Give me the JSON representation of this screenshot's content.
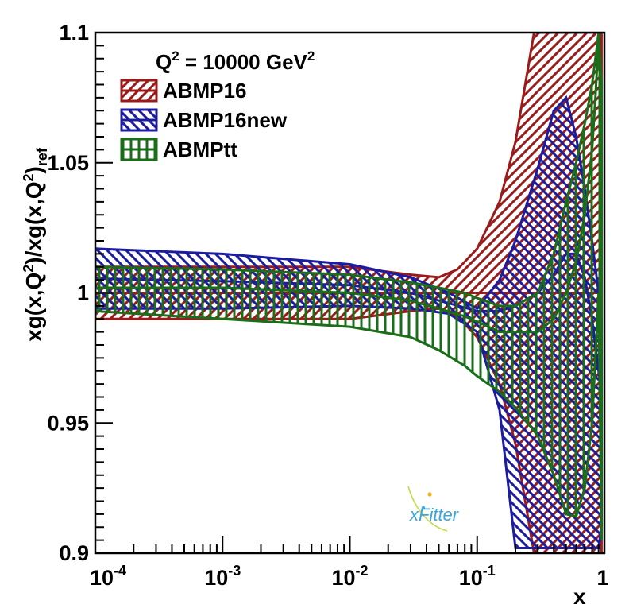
{
  "chart_data": {
    "type": "area",
    "title": "",
    "annotation": {
      "prefix": "Q",
      "sup1": "2",
      "middle": " = 10000 GeV",
      "sup2": "2"
    },
    "xlabel": "x",
    "ylabel": {
      "p1": "xg(x,Q",
      "s1": "2",
      "p2": ")/xg(x,Q",
      "s2": "2",
      "p3": ")",
      "sub": "ref"
    },
    "x_scale": "log",
    "xlim": [
      0.0001,
      1
    ],
    "ylim": [
      0.9,
      1.1
    ],
    "x_ticks": [
      {
        "value": 0.0001,
        "base": "10",
        "exp": "-4"
      },
      {
        "value": 0.001,
        "base": "10",
        "exp": "-3"
      },
      {
        "value": 0.01,
        "base": "10",
        "exp": "-2"
      },
      {
        "value": 0.1,
        "base": "10",
        "exp": "-1"
      },
      {
        "value": 1,
        "base": "1",
        "exp": ""
      }
    ],
    "y_ticks": [
      {
        "value": 0.9,
        "label": "0.9"
      },
      {
        "value": 0.95,
        "label": "0.95"
      },
      {
        "value": 1.0,
        "label": "1"
      },
      {
        "value": 1.05,
        "label": "1.05"
      },
      {
        "value": 1.1,
        "label": "1.1"
      }
    ],
    "grid": false,
    "legend_position": "top-left",
    "logo": "xFitter",
    "series": [
      {
        "name": "ABMP16",
        "color": "#9b1a1a",
        "hatch": "diagonal-up",
        "x": [
          0.0001,
          0.001,
          0.01,
          0.03,
          0.05,
          0.07,
          0.1,
          0.15,
          0.2,
          0.28,
          0.35,
          0.5,
          0.7,
          0.85,
          0.9,
          0.95
        ],
        "central": [
          1.0,
          1.0,
          1.0,
          1.0,
          1.0,
          1.0,
          1.0,
          1.0,
          1.0,
          1.0,
          1.0,
          1.0,
          1.0,
          1.0,
          1.0,
          1.0
        ],
        "upper": [
          1.01,
          1.01,
          1.01,
          1.007,
          1.006,
          1.009,
          1.017,
          1.035,
          1.058,
          1.1,
          1.1,
          1.1,
          1.1,
          1.1,
          1.1,
          1.1
        ],
        "lower": [
          0.99,
          0.99,
          0.99,
          0.993,
          0.994,
          0.991,
          0.983,
          0.965,
          0.942,
          0.9,
          0.9,
          0.9,
          0.9,
          0.9,
          0.9,
          0.9
        ]
      },
      {
        "name": "ABMP16new",
        "color": "#1c1ca0",
        "hatch": "diagonal-down",
        "x": [
          0.0001,
          0.001,
          0.01,
          0.03,
          0.06,
          0.1,
          0.15,
          0.2,
          0.3,
          0.4,
          0.5,
          0.6,
          0.7,
          0.8,
          0.9,
          0.95
        ],
        "central": [
          1.0055,
          1.0045,
          1.003,
          1.0,
          0.996,
          0.993,
          0.993,
          0.995,
          1.0,
          1.007,
          1.015,
          1.015,
          1.006,
          0.99,
          0.97,
          0.96
        ],
        "upper": [
          1.017,
          1.015,
          1.011,
          1.006,
          1.0,
          0.994,
          1.005,
          1.02,
          1.048,
          1.07,
          1.075,
          1.06,
          1.04,
          1.02,
          1.0,
          0.99
        ],
        "lower": [
          0.994,
          0.994,
          0.995,
          0.994,
          0.992,
          0.985,
          0.955,
          0.902,
          0.902,
          0.902,
          0.902,
          0.902,
          0.902,
          0.902,
          0.902,
          0.91
        ]
      },
      {
        "name": "ABMPtt",
        "color": "#1a6e1a",
        "hatch": "vertical",
        "x": [
          0.0001,
          0.001,
          0.01,
          0.03,
          0.05,
          0.08,
          0.1,
          0.15,
          0.2,
          0.3,
          0.4,
          0.5,
          0.6,
          0.7,
          0.8,
          0.85,
          0.9,
          0.95
        ],
        "central": [
          1.002,
          1.002,
          1.0,
          0.997,
          0.994,
          0.991,
          0.989,
          0.985,
          0.985,
          0.985,
          0.99,
          1.0,
          1.012,
          1.03,
          1.055,
          1.075,
          1.098,
          1.06
        ],
        "upper": [
          1.01,
          1.009,
          1.007,
          1.004,
          1.002,
          1.0,
          0.998,
          0.995,
          0.995,
          1.0,
          1.015,
          1.035,
          1.05,
          1.065,
          1.08,
          1.09,
          1.1,
          1.08
        ],
        "lower": [
          0.993,
          0.99,
          0.987,
          0.983,
          0.978,
          0.972,
          0.968,
          0.962,
          0.956,
          0.945,
          0.93,
          0.915,
          0.914,
          0.925,
          0.95,
          0.975,
          1.0,
          0.905
        ]
      }
    ]
  }
}
